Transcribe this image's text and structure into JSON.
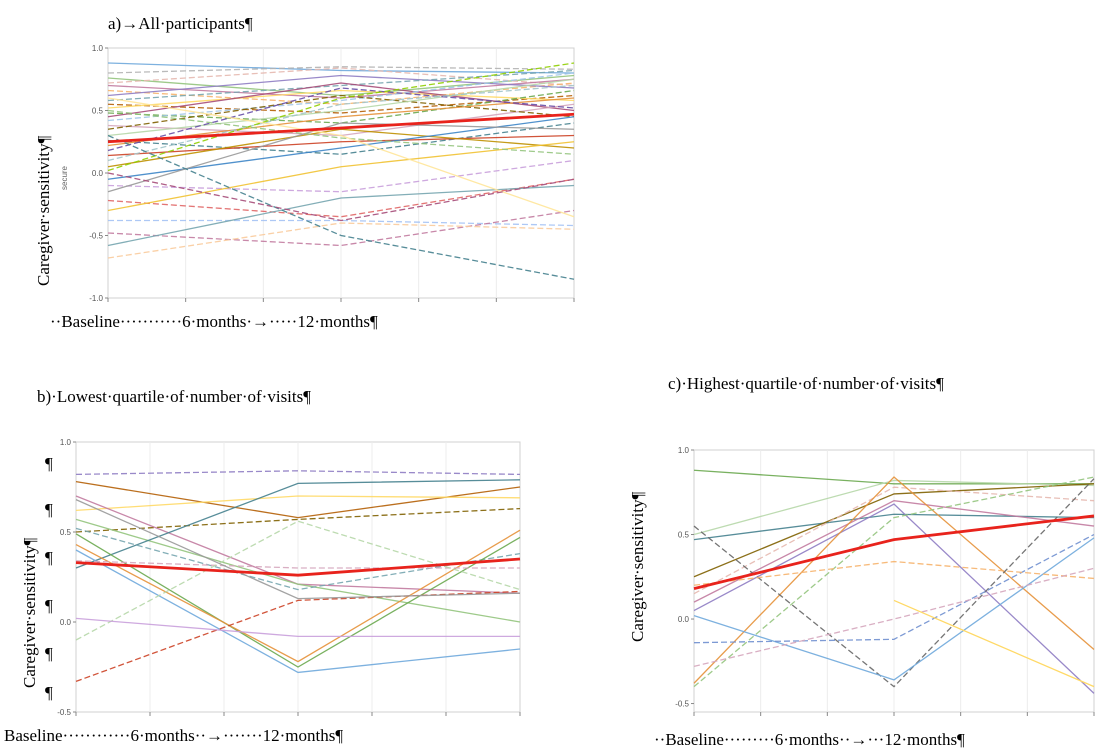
{
  "chart_data": [
    {
      "type": "line",
      "title": "a)→All·participants¶",
      "ylabel": "Caregiver·sensitivity¶",
      "ylabel_sub": "secure",
      "time_labels": "··Baseline···········6·months·→·····12·months¶",
      "x": [
        0,
        6,
        12
      ],
      "ylim": [
        -1.0,
        1.0
      ],
      "yticks": [
        {
          "v": -1.0,
          "label": "-1.0"
        },
        {
          "v": -0.5,
          "label": "-0.5"
        },
        {
          "v": 0.0,
          "label": "0.0"
        },
        {
          "v": 0.5,
          "label": "0.5"
        },
        {
          "v": 1.0,
          "label": "1.0"
        }
      ],
      "grid": true,
      "mean": {
        "values": [
          0.25,
          0.36,
          0.47
        ],
        "color": "#e8231c"
      },
      "series": [
        {
          "values": [
            0.88,
            0.82,
            0.8
          ],
          "color": "#6fa8dc",
          "dash": false
        },
        {
          "values": [
            0.8,
            0.85,
            0.83
          ],
          "color": "#b3b3b3",
          "dash": true
        },
        {
          "values": [
            0.76,
            0.62,
            0.78
          ],
          "color": "#93c47d",
          "dash": false
        },
        {
          "values": [
            0.72,
            0.84,
            0.7
          ],
          "color": "#e6b8af",
          "dash": true
        },
        {
          "values": [
            0.7,
            0.6,
            0.75
          ],
          "color": "#c27ba0",
          "dash": false
        },
        {
          "values": [
            0.66,
            0.55,
            0.72
          ],
          "color": "#f6b26b",
          "dash": true
        },
        {
          "values": [
            0.62,
            0.78,
            0.68
          ],
          "color": "#8e7cc3",
          "dash": false
        },
        {
          "values": [
            0.58,
            0.7,
            0.82
          ],
          "color": "#76a5af",
          "dash": true
        },
        {
          "values": [
            0.55,
            0.48,
            0.62
          ],
          "color": "#b45f06",
          "dash": true
        },
        {
          "values": [
            0.52,
            0.66,
            0.58
          ],
          "color": "#ffd966",
          "dash": false
        },
        {
          "values": [
            0.48,
            0.4,
            0.66
          ],
          "color": "#6aa84f",
          "dash": true
        },
        {
          "values": [
            0.45,
            0.72,
            0.5
          ],
          "color": "#a64d79",
          "dash": false
        },
        {
          "values": [
            0.42,
            0.58,
            0.8
          ],
          "color": "#9fc5e8",
          "dash": true
        },
        {
          "values": [
            0.38,
            0.3,
            0.55
          ],
          "color": "#d5a6bd",
          "dash": false
        },
        {
          "values": [
            0.35,
            0.62,
            0.45
          ],
          "color": "#7f6000",
          "dash": true
        },
        {
          "values": [
            0.3,
            0.5,
            0.75
          ],
          "color": "#b6d7a8",
          "dash": false
        },
        {
          "values": [
            0.26,
            0.15,
            0.4
          ],
          "color": "#45818e",
          "dash": true
        },
        {
          "values": [
            0.22,
            0.45,
            0.6
          ],
          "color": "#e69138",
          "dash": false
        },
        {
          "values": [
            0.18,
            0.68,
            0.52
          ],
          "color": "#674ea7",
          "dash": true
        },
        {
          "values": [
            0.14,
            0.25,
            0.3
          ],
          "color": "#cc4125",
          "dash": false
        },
        {
          "values": [
            0.1,
            0.55,
            0.7
          ],
          "color": "#a2c4c9",
          "dash": true
        },
        {
          "values": [
            0.05,
            0.35,
            0.2
          ],
          "color": "#bf9000",
          "dash": false
        },
        {
          "values": [
            0.02,
            0.6,
            0.88
          ],
          "color": "#8fce00",
          "dash": true
        },
        {
          "values": [
            -0.05,
            0.2,
            0.45
          ],
          "color": "#3d85c6",
          "dash": false
        },
        {
          "values": [
            -0.1,
            -0.15,
            0.1
          ],
          "color": "#c9a0dc",
          "dash": true
        },
        {
          "values": [
            -0.15,
            0.4,
            0.35
          ],
          "color": "#999999",
          "dash": false
        },
        {
          "values": [
            -0.22,
            -0.35,
            -0.05
          ],
          "color": "#e06666",
          "dash": true
        },
        {
          "values": [
            -0.3,
            0.05,
            0.25
          ],
          "color": "#f1c232",
          "dash": false
        },
        {
          "values": [
            -0.38,
            -0.38,
            -0.42
          ],
          "color": "#a4c2f4",
          "dash": true
        },
        {
          "values": [
            -0.48,
            -0.58,
            -0.3
          ],
          "color": "#c27ba0",
          "dash": true
        },
        {
          "values": [
            -0.58,
            -0.2,
            -0.1
          ],
          "color": "#76a5af",
          "dash": false
        },
        {
          "values": [
            -0.68,
            -0.4,
            -0.45
          ],
          "color": "#f9cb9c",
          "dash": true
        },
        {
          "values": [
            0.3,
            -0.5,
            -0.85
          ],
          "color": "#45818e",
          "dash": true
        },
        {
          "values": [
            0.5,
            0.28,
            0.15
          ],
          "color": "#93c47d",
          "dash": true
        },
        {
          "values": [
            0.6,
            0.3,
            -0.35
          ],
          "color": "#ffe599",
          "dash": false
        },
        {
          "values": [
            0.0,
            -0.38,
            -0.05
          ],
          "color": "#a64d79",
          "dash": true
        }
      ]
    },
    {
      "type": "line",
      "title": "b)·Lowest·quartile·of·number·of·visits¶",
      "ylabel": "Caregiver·sensitivity¶",
      "time_labels": "Baseline············6·months··→·······12·months¶",
      "x": [
        0,
        6,
        12
      ],
      "ylim": [
        -0.5,
        1.0
      ],
      "yticks": [
        {
          "v": -0.5,
          "label": "-0.5"
        },
        {
          "v": 0.0,
          "label": "0.0"
        },
        {
          "v": 0.5,
          "label": "0.5"
        },
        {
          "v": 1.0,
          "label": "1.0"
        }
      ],
      "grid": true,
      "mean": {
        "values": [
          0.33,
          0.26,
          0.35
        ],
        "color": "#e8231c"
      },
      "series": [
        {
          "values": [
            0.82,
            0.84,
            0.82
          ],
          "color": "#8e7cc3",
          "dash": true
        },
        {
          "values": [
            0.78,
            0.58,
            0.75
          ],
          "color": "#b45f06",
          "dash": false
        },
        {
          "values": [
            0.62,
            0.7,
            0.69
          ],
          "color": "#ffd966",
          "dash": false
        },
        {
          "values": [
            0.5,
            0.57,
            0.63
          ],
          "color": "#7f6000",
          "dash": true
        },
        {
          "values": [
            0.7,
            0.21,
            0.16
          ],
          "color": "#c27ba0",
          "dash": false
        },
        {
          "values": [
            0.57,
            0.21,
            0.0
          ],
          "color": "#93c47d",
          "dash": false
        },
        {
          "values": [
            0.3,
            0.77,
            0.79
          ],
          "color": "#45818e",
          "dash": false
        },
        {
          "values": [
            0.52,
            0.18,
            0.38
          ],
          "color": "#76a5af",
          "dash": true
        },
        {
          "values": [
            0.49,
            -0.25,
            0.47
          ],
          "color": "#6aa84f",
          "dash": false
        },
        {
          "values": [
            0.43,
            -0.22,
            0.51
          ],
          "color": "#e69138",
          "dash": false
        },
        {
          "values": [
            0.4,
            -0.28,
            -0.15
          ],
          "color": "#6fa8dc",
          "dash": false
        },
        {
          "values": [
            0.34,
            0.3,
            0.3
          ],
          "color": "#d5a6bd",
          "dash": true
        },
        {
          "values": [
            -0.1,
            0.56,
            0.18
          ],
          "color": "#b6d7a8",
          "dash": true
        },
        {
          "values": [
            -0.33,
            0.12,
            0.17
          ],
          "color": "#cc4125",
          "dash": true
        },
        {
          "values": [
            0.02,
            -0.08,
            -0.08
          ],
          "color": "#c9a0dc",
          "dash": false
        },
        {
          "values": [
            0.68,
            0.13,
            0.16
          ],
          "color": "#999999",
          "dash": false
        }
      ]
    },
    {
      "type": "line",
      "title": "c)·Highest·quartile·of·number·of·visits¶",
      "ylabel": "Caregiver·sensitivity¶",
      "time_labels": "··Baseline·········6·months··→···12·months¶",
      "x": [
        0,
        6,
        12
      ],
      "ylim": [
        -0.55,
        1.0
      ],
      "yticks": [
        {
          "v": -0.5,
          "label": "-0.5"
        },
        {
          "v": 0.0,
          "label": "0.0"
        },
        {
          "v": 0.5,
          "label": "0.5"
        },
        {
          "v": 1.0,
          "label": "1.0"
        }
      ],
      "grid": true,
      "mean": {
        "values": [
          0.18,
          0.47,
          0.61
        ],
        "color": "#e8231c"
      },
      "series": [
        {
          "values": [
            0.88,
            0.8,
            0.8
          ],
          "color": "#6aa84f",
          "dash": false
        },
        {
          "values": [
            0.5,
            0.82,
            0.79
          ],
          "color": "#b6d7a8",
          "dash": false
        },
        {
          "values": [
            0.47,
            0.62,
            0.6
          ],
          "color": "#45818e",
          "dash": false
        },
        {
          "values": [
            0.25,
            0.74,
            0.8
          ],
          "color": "#7f6000",
          "dash": false
        },
        {
          "values": [
            0.15,
            0.78,
            0.7
          ],
          "color": "#e6b8af",
          "dash": true
        },
        {
          "values": [
            0.1,
            0.7,
            0.55
          ],
          "color": "#c27ba0",
          "dash": false
        },
        {
          "values": [
            0.05,
            0.68,
            -0.44
          ],
          "color": "#8e7cc3",
          "dash": false
        },
        {
          "values": [
            -0.38,
            0.84,
            -0.18
          ],
          "color": "#e69138",
          "dash": false
        },
        {
          "values": [
            -0.4,
            0.6,
            0.84
          ],
          "color": "#93c47d",
          "dash": true
        },
        {
          "values": [
            0.55,
            -0.4,
            0.83
          ],
          "color": "#666666",
          "dash": true
        },
        {
          "values": [
            0.02,
            -0.36,
            0.48
          ],
          "color": "#6fa8dc",
          "dash": false
        },
        {
          "values": [
            -0.14,
            -0.12,
            0.5
          ],
          "color": "#6f8fcf",
          "dash": true
        },
        {
          "values": [
            0.2,
            0.34,
            0.24
          ],
          "color": "#f6b26b",
          "dash": true
        },
        {
          "values": [
            -0.28,
            0.0,
            0.3
          ],
          "color": "#d5a6bd",
          "dash": true
        }
      ],
      "extra_segments": [
        {
          "x": [
            6,
            12
          ],
          "values": [
            0.11,
            -0.4
          ],
          "color": "#ffd966",
          "dash": false
        }
      ]
    }
  ]
}
